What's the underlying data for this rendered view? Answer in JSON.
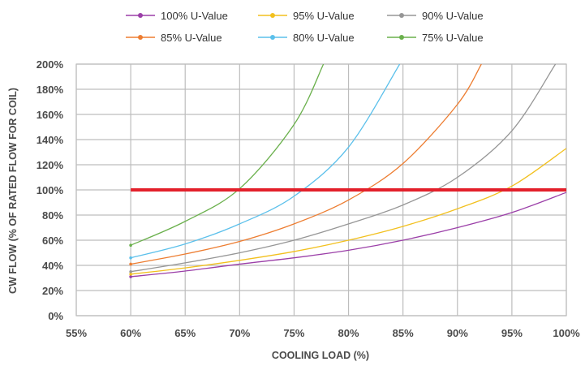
{
  "chart_data": {
    "type": "line",
    "xlabel": "COOLING LOAD (%)",
    "ylabel": "CW FLOW (% OF RATED FLOW FOR COIL)",
    "xlim": [
      55,
      100
    ],
    "ylim": [
      0,
      200
    ],
    "x_ticks": [
      55,
      60,
      65,
      70,
      75,
      80,
      85,
      90,
      95,
      100
    ],
    "x_tick_labels": [
      "55%",
      "60%",
      "65%",
      "70%",
      "75%",
      "80%",
      "85%",
      "90%",
      "95%",
      "100%"
    ],
    "y_ticks": [
      0,
      20,
      40,
      60,
      80,
      100,
      120,
      140,
      160,
      180,
      200
    ],
    "y_tick_labels": [
      "0%",
      "20%",
      "40%",
      "60%",
      "80%",
      "100%",
      "120%",
      "140%",
      "160%",
      "180%",
      "200%"
    ],
    "grid": true,
    "legend_position": "top",
    "reference_line": {
      "y": 100,
      "color": "#e3202b"
    },
    "series": [
      {
        "name": "100% U-Value",
        "color": "#9b3fa8",
        "x": [
          60,
          65,
          70,
          75,
          80,
          85,
          90,
          95,
          100
        ],
        "y": [
          31,
          35.5,
          41,
          46,
          52,
          60,
          70,
          82,
          98
        ]
      },
      {
        "name": "95% U-Value",
        "color": "#f2c01e",
        "x": [
          60,
          65,
          70,
          75,
          80,
          85,
          90,
          95,
          100
        ],
        "y": [
          33,
          38,
          44,
          51,
          60,
          71,
          85,
          103,
          133
        ]
      },
      {
        "name": "90% U-Value",
        "color": "#969696",
        "x": [
          60,
          65,
          70,
          75,
          80,
          85,
          90,
          95,
          99
        ],
        "y": [
          35,
          42,
          50,
          60,
          73,
          88,
          110,
          147,
          200
        ]
      },
      {
        "name": "85% U-Value",
        "color": "#ed7d31",
        "x": [
          60,
          65,
          70,
          75,
          80,
          85,
          90,
          92.2
        ],
        "y": [
          41,
          49,
          59,
          73,
          92,
          121,
          168,
          200
        ]
      },
      {
        "name": "80% U-Value",
        "color": "#5bc0eb",
        "x": [
          60,
          65,
          70,
          75,
          80,
          84.7
        ],
        "y": [
          46,
          57,
          73,
          95,
          134,
          200
        ]
      },
      {
        "name": "75% U-Value",
        "color": "#6ab04c",
        "x": [
          60,
          65,
          70,
          75,
          77.7
        ],
        "y": [
          56,
          75,
          101,
          152,
          200
        ]
      }
    ]
  }
}
